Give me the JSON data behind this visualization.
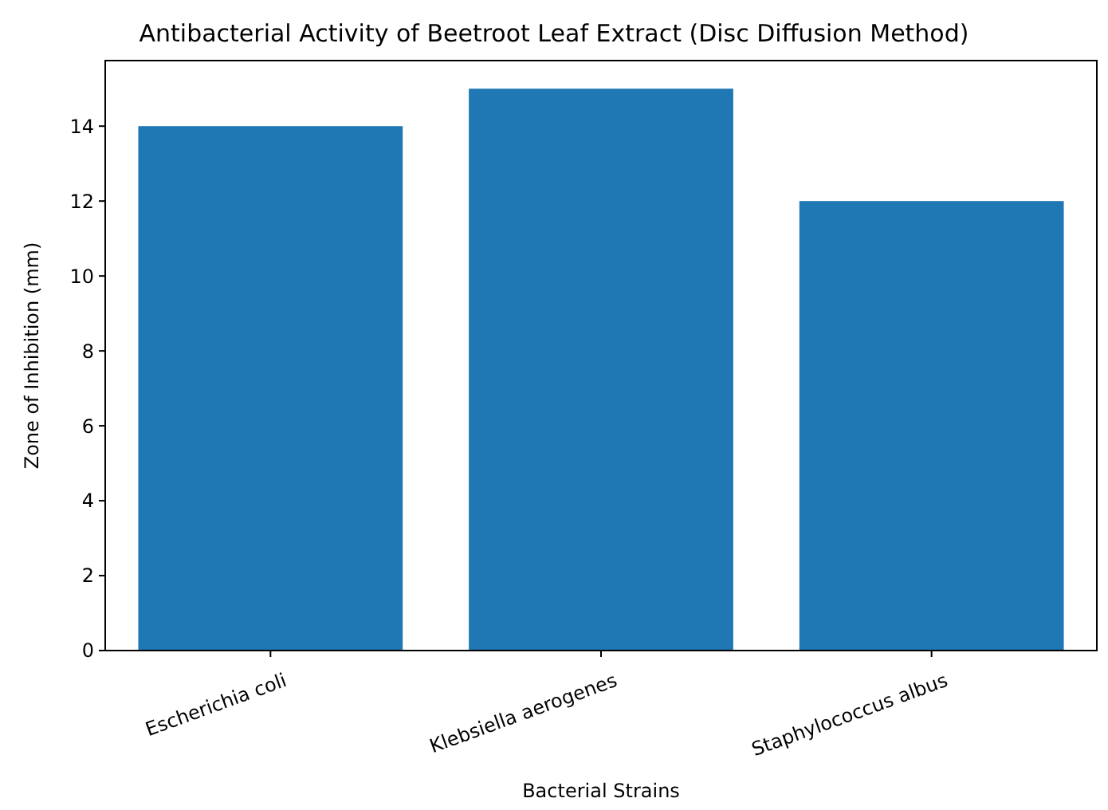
{
  "chart_data": {
    "type": "bar",
    "title": "Antibacterial Activity of Beetroot Leaf Extract (Disc Diffusion Method)",
    "xlabel": "Bacterial Strains",
    "ylabel": "Zone of Inhibition (mm)",
    "categories": [
      "Escherichia coli",
      "Klebsiella aerogenes",
      "Staphylococcus albus"
    ],
    "values": [
      14,
      15,
      12
    ],
    "color": "#1f77b4",
    "ylim": [
      0,
      15.75
    ],
    "yticks": [
      0,
      2,
      4,
      6,
      8,
      10,
      12,
      14
    ],
    "grid": false
  }
}
